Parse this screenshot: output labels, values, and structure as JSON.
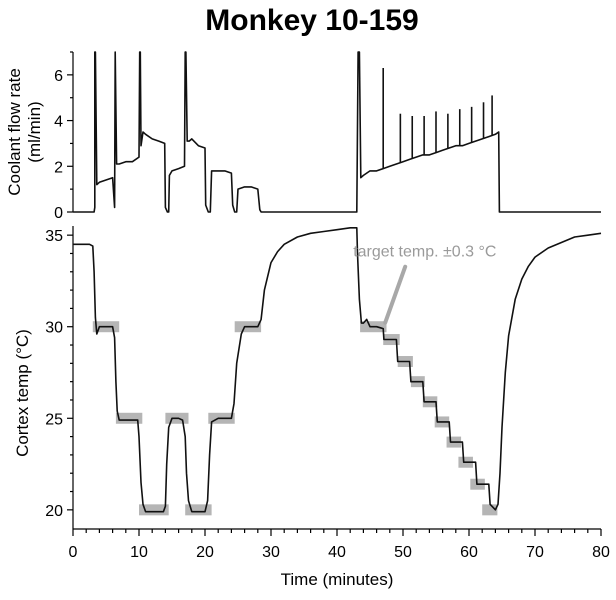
{
  "chart_data": [
    {
      "type": "line",
      "title": "Monkey 10-159",
      "ylabel_lines": [
        "Coolant flow rate",
        "(ml/min)"
      ],
      "xlabel": "",
      "xlim": [
        0,
        80
      ],
      "ylim": [
        0,
        7
      ],
      "yticks": [
        "0",
        "2",
        "4",
        "6"
      ],
      "grid": false,
      "series": [
        {
          "x": [
            0,
            3.2,
            3.3,
            3.3,
            3.4,
            3.6,
            4,
            5,
            6,
            6.3,
            6.4,
            6.4,
            6.6,
            7,
            8,
            9,
            10,
            10.1,
            10.2,
            10.3,
            10.6,
            11,
            12,
            13,
            13.9,
            14,
            14.3,
            14.5,
            14.6,
            15,
            16,
            16.9,
            17,
            17.1,
            17.3,
            17.6,
            18,
            19,
            20,
            20.1,
            20.5,
            20.8,
            21,
            22,
            23,
            24,
            24.2,
            24.5,
            24.8,
            25,
            26,
            27,
            28,
            28.3,
            28.5,
            43,
            43.2,
            43.3,
            43.4,
            43.6,
            44,
            45,
            46,
            47,
            48,
            49,
            50,
            51,
            52,
            53,
            54,
            55,
            56,
            57,
            58,
            59,
            60,
            61,
            62,
            63,
            64,
            64.5,
            64.6,
            80
          ],
          "y": [
            0,
            0,
            0.2,
            7,
            7,
            1.2,
            1.3,
            1.4,
            1.5,
            0.2,
            7,
            7,
            2.1,
            2.1,
            2.2,
            2.2,
            2.4,
            7,
            7,
            2.9,
            3.5,
            3.4,
            3.2,
            3.1,
            3.0,
            0.2,
            0,
            0,
            1.6,
            1.8,
            1.9,
            2.0,
            7,
            7,
            3.1,
            3.1,
            3.2,
            2.9,
            2.8,
            0.3,
            0,
            0,
            1.8,
            1.8,
            1.8,
            1.7,
            0.3,
            0,
            0,
            1.0,
            1.1,
            1.1,
            1.0,
            0.1,
            0,
            0,
            7,
            7,
            7,
            1.5,
            1.6,
            1.8,
            1.8,
            1.9,
            2.0,
            2.1,
            2.2,
            2.3,
            2.4,
            2.5,
            2.5,
            2.6,
            2.7,
            2.8,
            2.9,
            2.9,
            3.0,
            3.1,
            3.2,
            3.3,
            3.4,
            3.5,
            0,
            0
          ],
          "spikes_x": [
            47,
            49.6,
            51.4,
            53.2,
            55,
            56.8,
            58.6,
            60.4,
            62.2,
            63.5
          ],
          "spikes_y": [
            6.3,
            4.3,
            4.2,
            4.2,
            4.4,
            4.3,
            4.5,
            4.6,
            4.8,
            5.1
          ]
        }
      ]
    },
    {
      "type": "line",
      "title": "",
      "xlabel": "Time (minutes)",
      "ylabel": "Cortex temp (°C)",
      "xlim": [
        0,
        80
      ],
      "ylim": [
        19.5,
        35.5
      ],
      "xticks": [
        "0",
        "10",
        "20",
        "30",
        "40",
        "50",
        "60",
        "70",
        "80"
      ],
      "yticks": [
        "20",
        "25",
        "30",
        "35"
      ],
      "grid": false,
      "annotation": "target temp. ±0.3 °C",
      "annotation_at": [
        47,
        30
      ],
      "target_bands": [
        {
          "x": [
            3,
            7
          ],
          "y": 30
        },
        {
          "x": [
            6.5,
            10.5
          ],
          "y": 25
        },
        {
          "x": [
            10,
            14.5
          ],
          "y": 20
        },
        {
          "x": [
            14,
            17.5
          ],
          "y": 25
        },
        {
          "x": [
            17,
            21
          ],
          "y": 20
        },
        {
          "x": [
            20.5,
            24.5
          ],
          "y": 25
        },
        {
          "x": [
            24.5,
            28.5
          ],
          "y": 30
        },
        {
          "x": [
            43.5,
            47.5
          ],
          "y": 30
        },
        {
          "x": [
            47,
            49.5
          ],
          "y": 29.3
        },
        {
          "x": [
            49.2,
            51.5
          ],
          "y": 28.1
        },
        {
          "x": [
            51.2,
            53.3
          ],
          "y": 27.0
        },
        {
          "x": [
            53,
            55.2
          ],
          "y": 25.9
        },
        {
          "x": [
            54.8,
            57
          ],
          "y": 24.8
        },
        {
          "x": [
            56.6,
            58.8
          ],
          "y": 23.7
        },
        {
          "x": [
            58.4,
            60.6
          ],
          "y": 22.6
        },
        {
          "x": [
            60.2,
            62.4
          ],
          "y": 21.4
        },
        {
          "x": [
            62,
            64.3
          ],
          "y": 20.0
        }
      ],
      "series": [
        {
          "x": [
            0,
            2.5,
            3.0,
            3.2,
            3.4,
            3.6,
            4,
            5,
            6,
            6.3,
            6.5,
            6.7,
            7,
            8,
            9,
            9.8,
            10,
            10.3,
            10.6,
            11,
            12,
            13,
            13.7,
            14,
            14.2,
            14.5,
            15,
            16,
            16.6,
            17,
            17.2,
            17.5,
            18,
            19,
            20,
            20.4,
            20.7,
            21,
            22,
            23,
            24,
            24.4,
            24.8,
            25.5,
            26,
            27,
            28,
            28.5,
            29,
            30,
            31,
            32,
            34,
            36,
            38,
            40,
            42,
            43,
            43.1,
            43.4,
            43.7,
            44,
            44.5,
            45,
            46,
            47,
            47.1,
            49,
            49.2,
            51,
            51.2,
            53,
            53.2,
            55,
            55.2,
            57,
            57.2,
            59,
            59.2,
            61,
            61.2,
            63,
            63.2,
            64,
            64.4,
            64.7,
            65,
            65.5,
            66,
            67,
            68,
            69,
            70,
            72,
            74,
            76,
            78,
            80
          ],
          "y": [
            34.5,
            34.5,
            34.4,
            33.0,
            30.5,
            29.6,
            30.0,
            30.0,
            30.0,
            29.4,
            27.0,
            25.4,
            24.9,
            24.9,
            24.9,
            24.9,
            24.0,
            21.5,
            20.3,
            19.9,
            19.9,
            19.9,
            19.9,
            20.2,
            22.5,
            24.5,
            25.0,
            25.0,
            24.9,
            24.0,
            22.0,
            20.5,
            19.9,
            19.9,
            19.9,
            20.5,
            23.0,
            24.8,
            25.0,
            25.0,
            25.0,
            25.8,
            28.0,
            29.6,
            30.0,
            30.0,
            30.0,
            30.4,
            32.0,
            33.5,
            34.1,
            34.5,
            34.9,
            35.1,
            35.2,
            35.3,
            35.4,
            35.4,
            34.0,
            31.5,
            30.2,
            30.2,
            30.4,
            30.0,
            30.0,
            29.9,
            29.3,
            29.3,
            28.1,
            28.1,
            27.0,
            27.0,
            25.9,
            25.9,
            24.8,
            24.8,
            23.7,
            23.7,
            22.6,
            22.6,
            21.4,
            21.4,
            20.3,
            20.0,
            20.3,
            22.0,
            24.5,
            27.5,
            29.5,
            31.5,
            32.6,
            33.3,
            33.8,
            34.3,
            34.6,
            34.9,
            35.0,
            35.1
          ]
        }
      ]
    }
  ]
}
